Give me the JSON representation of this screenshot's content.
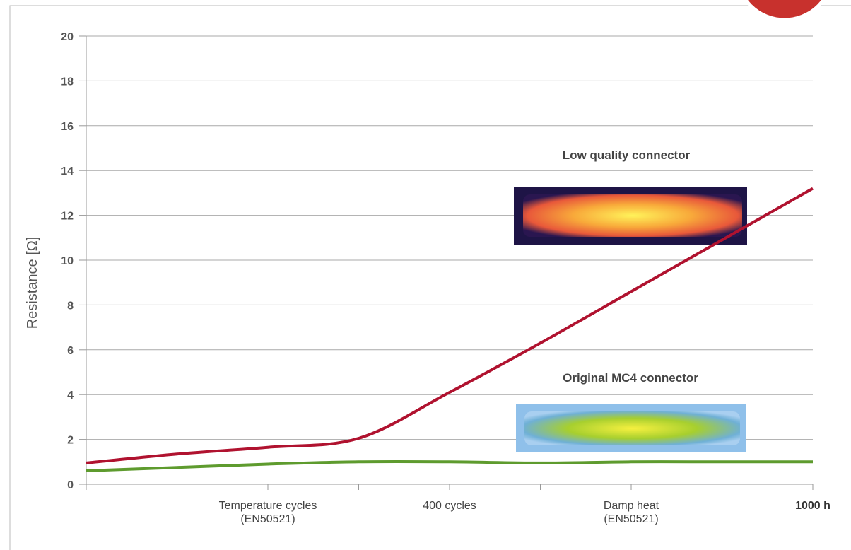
{
  "chart_data": {
    "type": "line",
    "y_label": "Resistance [Ω]",
    "categories": [
      null,
      null,
      "Temperature cycles\n(EN50521)",
      null,
      "400 cycles",
      null,
      "Damp heat\n(EN50521)",
      null,
      "1000 h"
    ],
    "series": [
      {
        "name": "Low quality connector",
        "color": "#b0122f",
        "values": [
          0.95,
          1.35,
          1.65,
          2.05,
          4.1,
          6.3,
          8.6,
          10.9,
          13.2
        ]
      },
      {
        "name": "Original MC4 connector",
        "color": "#5e9b2e",
        "values": [
          0.6,
          0.75,
          0.9,
          1.0,
          1.0,
          0.95,
          1.0,
          1.0,
          1.0
        ]
      }
    ],
    "ylim": [
      0,
      20
    ],
    "yticks": [
      0,
      2,
      4,
      6,
      8,
      10,
      12,
      14,
      16,
      18,
      20
    ],
    "grid": true
  }
}
